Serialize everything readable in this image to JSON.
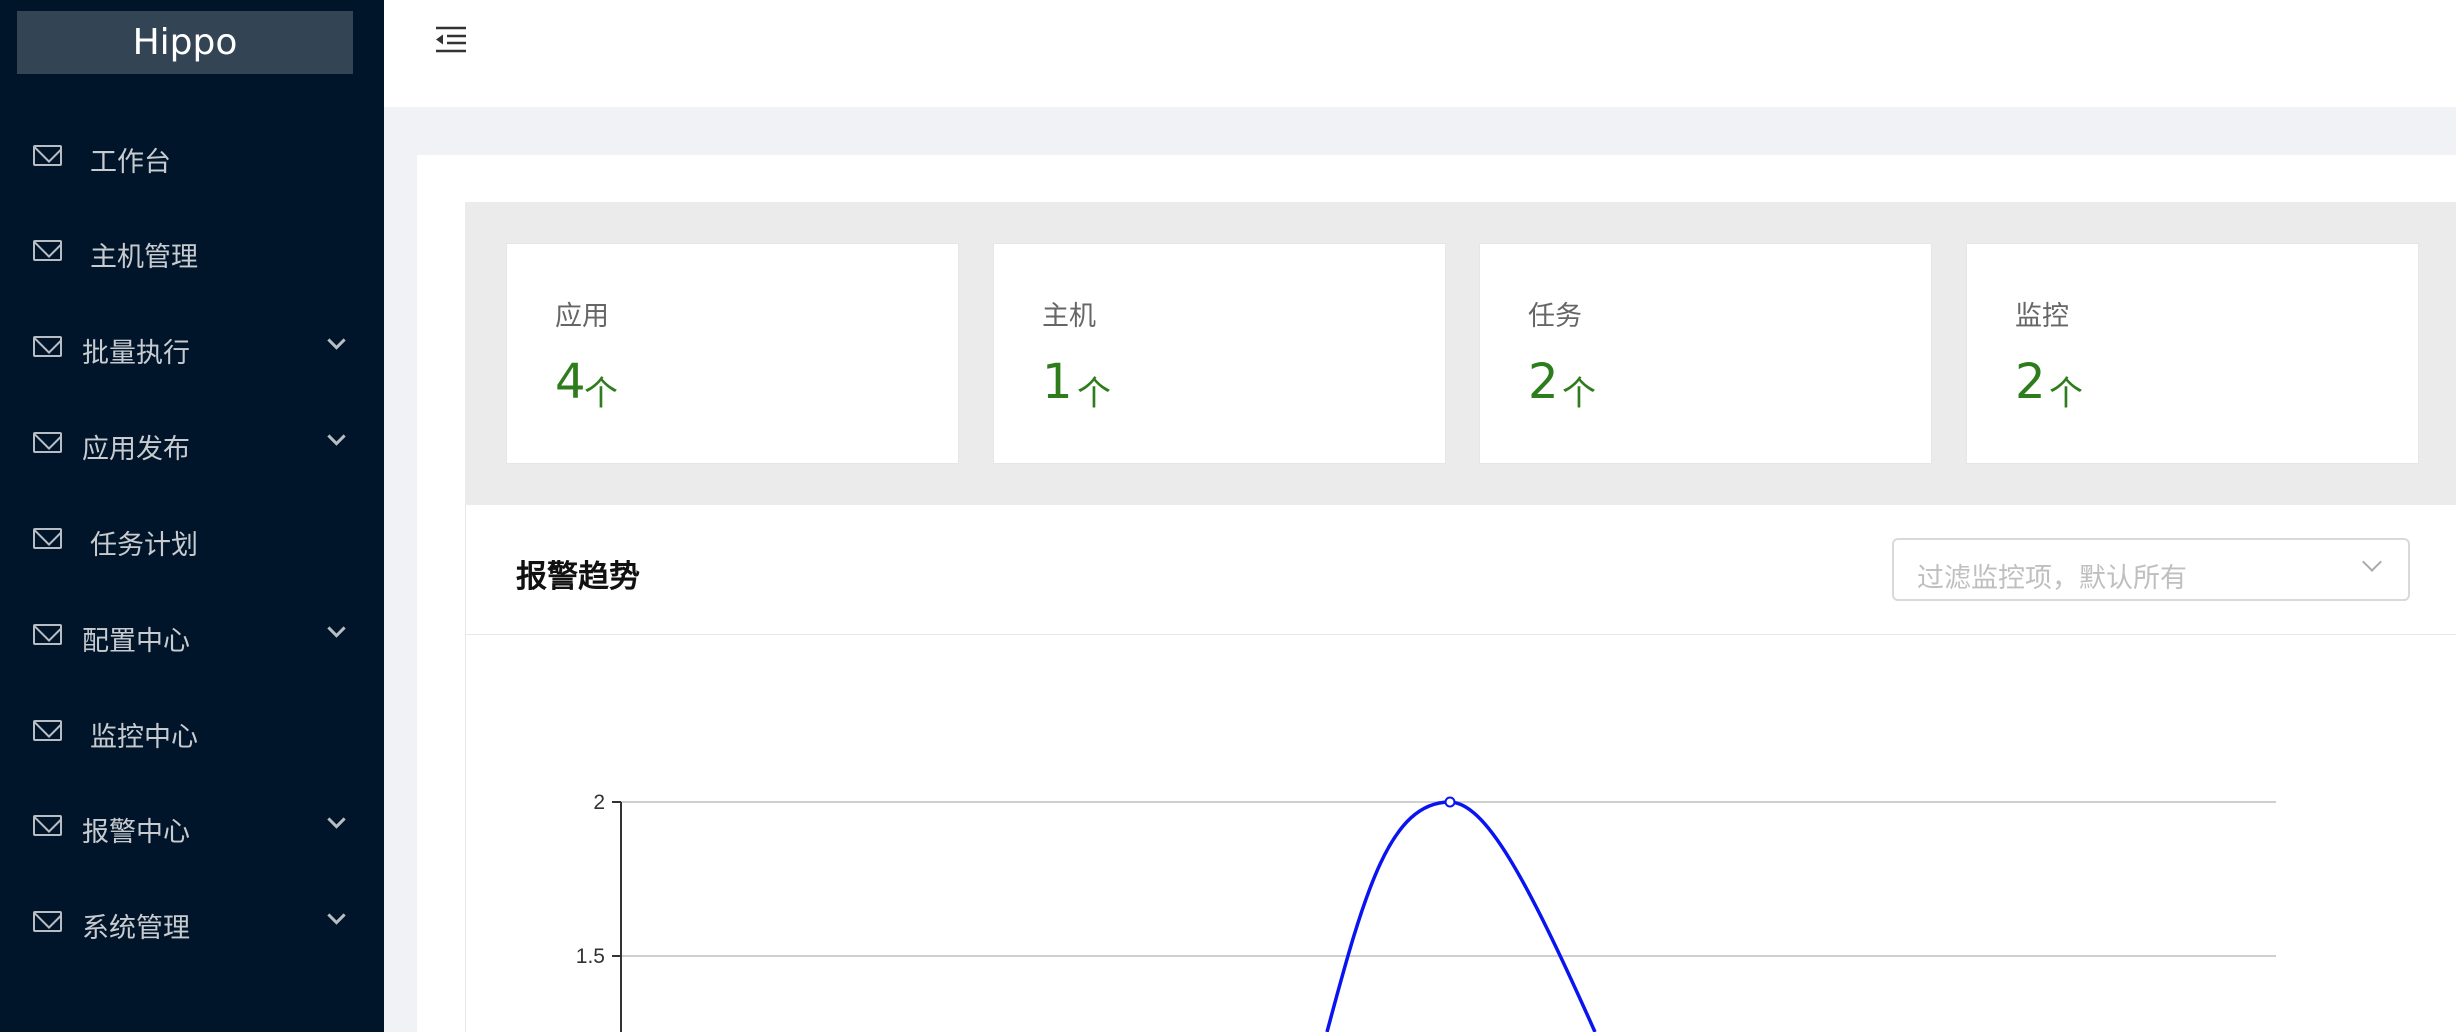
{
  "app": {
    "title": "Hippo"
  },
  "sidebar": {
    "items": [
      {
        "label": "工作台",
        "has_children": false
      },
      {
        "label": "主机管理",
        "has_children": false
      },
      {
        "label": "批量执行",
        "has_children": true
      },
      {
        "label": "应用发布",
        "has_children": true
      },
      {
        "label": "任务计划",
        "has_children": false
      },
      {
        "label": "配置中心",
        "has_children": true
      },
      {
        "label": "监控中心",
        "has_children": false
      },
      {
        "label": "报警中心",
        "has_children": true
      },
      {
        "label": "系统管理",
        "has_children": true
      }
    ]
  },
  "header": {
    "toggle_icon": "menu-fold-icon"
  },
  "stats": [
    {
      "title": "应用",
      "value": "4",
      "unit": "个"
    },
    {
      "title": "主机",
      "value": "1",
      "unit": "个"
    },
    {
      "title": "任务",
      "value": "2",
      "unit": "个"
    },
    {
      "title": "监控",
      "value": "2",
      "unit": "个"
    }
  ],
  "alarm": {
    "title": "报警趋势",
    "filter_placeholder": "过滤监控项，默认所有"
  },
  "colors": {
    "sidebar_bg": "#001529",
    "logo_bg": "#334454",
    "stat_value": "#2e7d1c",
    "line": "#0a14f0"
  },
  "chart_data": {
    "type": "line",
    "title": "",
    "xlabel": "",
    "ylabel": "",
    "y_ticks": [
      "2",
      "1.5"
    ],
    "peak_value": 2,
    "grid": true
  }
}
